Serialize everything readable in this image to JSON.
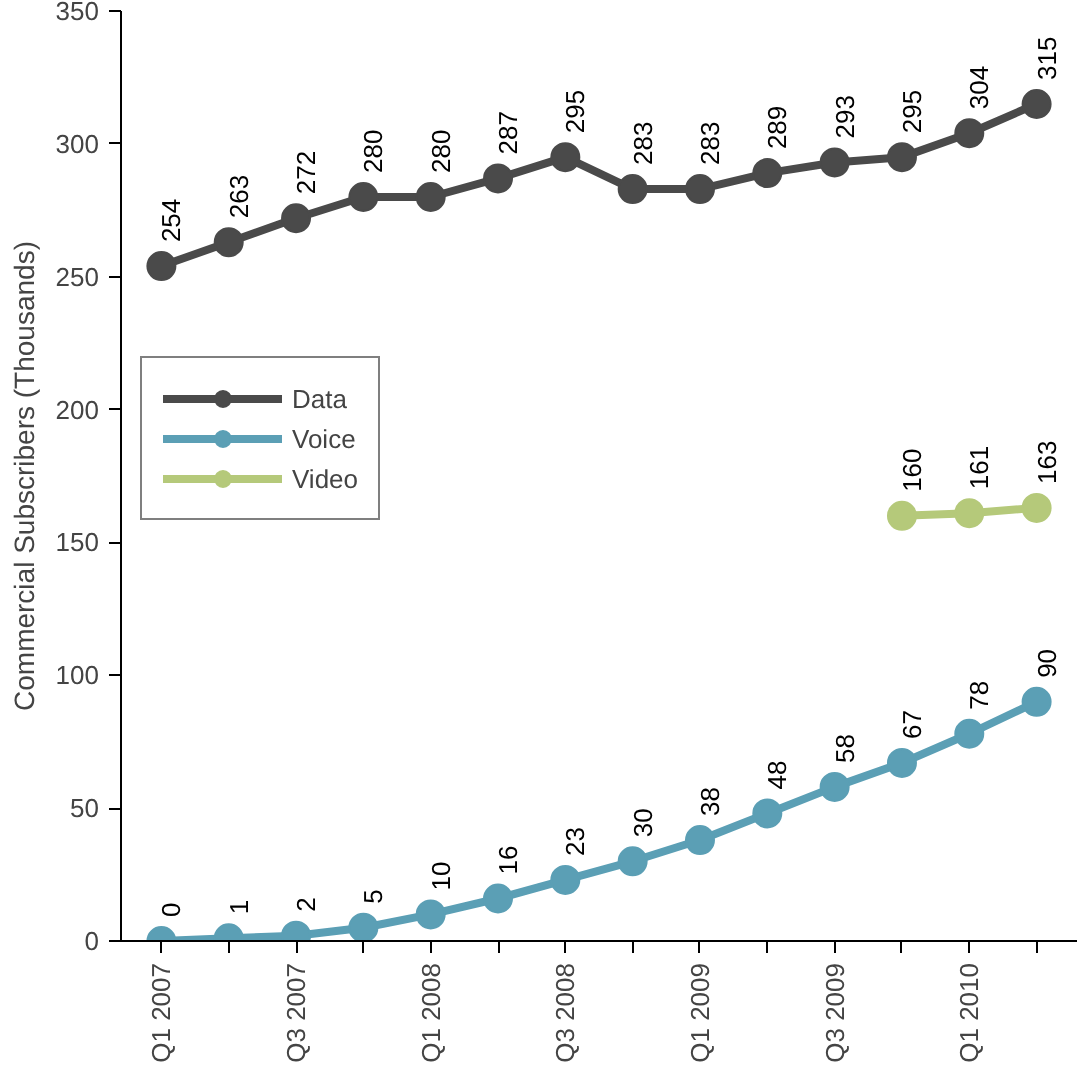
{
  "chart_data": {
    "type": "line",
    "ylabel": "Commercial Subscribers (Thousands)",
    "categories": [
      "Q1 2007",
      null,
      "Q3 2007",
      null,
      "Q1 2008",
      null,
      "Q3 2008",
      null,
      "Q1 2009",
      null,
      "Q3 2009",
      null,
      "Q1 2010",
      null
    ],
    "series": [
      {
        "name": "Data",
        "color": "#4a4a4a",
        "values": [
          254,
          263,
          272,
          280,
          280,
          287,
          295,
          283,
          283,
          289,
          293,
          295,
          304,
          315
        ]
      },
      {
        "name": "Voice",
        "color": "#5b9fb5",
        "values": [
          0,
          1,
          2,
          5,
          10,
          16,
          23,
          30,
          38,
          48,
          58,
          67,
          78,
          90
        ]
      },
      {
        "name": "Video",
        "color": "#b5c97a",
        "values": [
          null,
          null,
          null,
          null,
          null,
          null,
          null,
          null,
          null,
          null,
          null,
          160,
          161,
          163
        ]
      }
    ],
    "ylim": [
      0,
      350
    ],
    "yticks": [
      0,
      50,
      100,
      150,
      200,
      250,
      300,
      350
    ],
    "grid": false,
    "legend": "left",
    "marker": "circle",
    "line_style": "solid",
    "data_labels": true
  }
}
